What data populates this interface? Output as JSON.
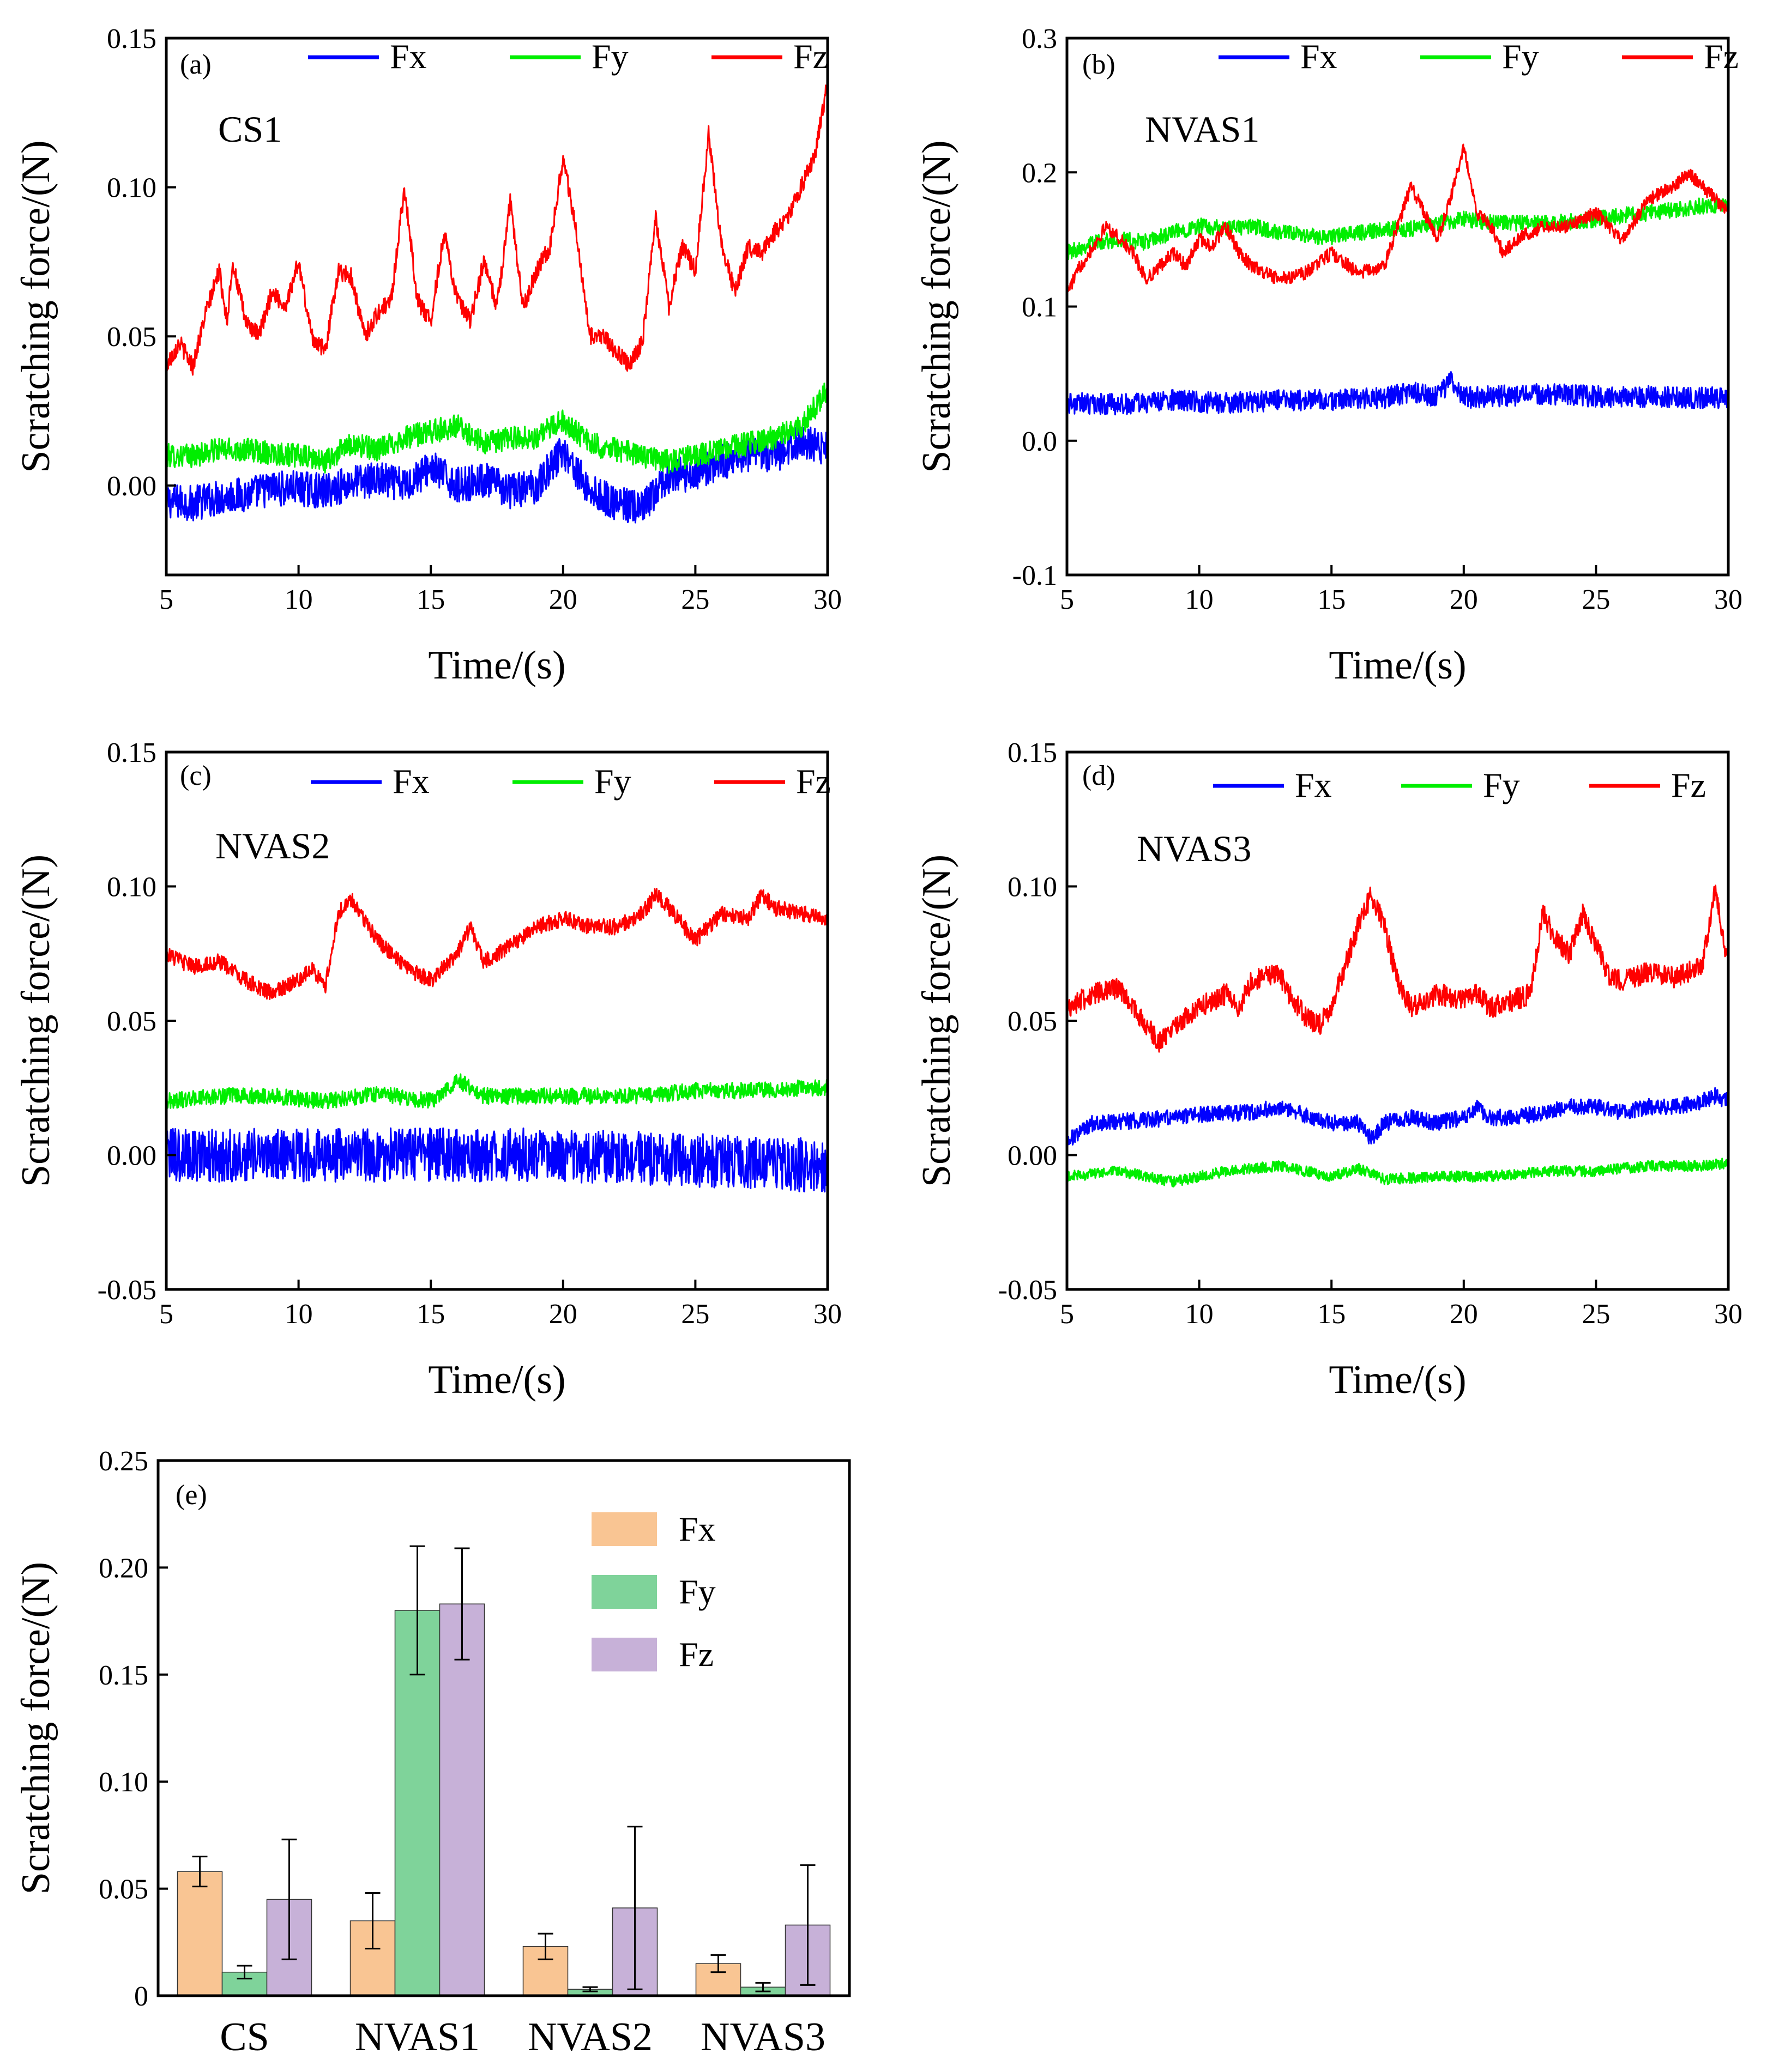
{
  "figure": {
    "ylabel": "Scratching force/(N)",
    "xlabel": "Time/(s)"
  },
  "colors": {
    "Fx": "#0000ff",
    "Fy": "#00ee00",
    "Fz": "#ff0000",
    "bar_Fx": "#f9c593",
    "bar_Fy": "#7fd39a",
    "bar_Fz": "#c7b1d8"
  },
  "chart_data": [
    {
      "type": "line",
      "panel": "(a)",
      "sample": "CS1",
      "xlabel": "Time/(s)",
      "ylabel": "Scratching force/(N)",
      "xlim": [
        5,
        30
      ],
      "ylim": [
        -0.03,
        0.15
      ],
      "xticks": [
        "5",
        "10",
        "15",
        "20",
        "25",
        "30"
      ],
      "yticks": [
        "0.00",
        "0.05",
        "0.10",
        "0.15"
      ],
      "ytick_values": [
        0,
        0.05,
        0.1,
        0.15
      ],
      "legend": [
        "Fx",
        "Fy",
        "Fz"
      ],
      "series": [
        {
          "name": "Fx",
          "x": [
            5,
            6,
            7,
            8,
            9,
            10,
            11,
            12,
            13,
            14,
            15,
            16,
            17,
            18,
            19,
            20,
            21,
            22,
            23,
            24,
            25,
            26,
            27,
            28,
            29,
            30
          ],
          "values": [
            -0.005,
            -0.006,
            -0.004,
            -0.003,
            -0.001,
            -0.001,
            -0.002,
            0.001,
            0.002,
            0.0,
            0.006,
            0.0,
            0.002,
            -0.002,
            0.0,
            0.012,
            -0.002,
            -0.006,
            -0.008,
            0.003,
            0.004,
            0.008,
            0.01,
            0.01,
            0.015,
            0.012
          ],
          "noise": 0.006
        },
        {
          "name": "Fy",
          "x": [
            5,
            6,
            7,
            8,
            9,
            10,
            11,
            12,
            13,
            14,
            15,
            16,
            17,
            18,
            19,
            20,
            21,
            22,
            23,
            24,
            25,
            26,
            27,
            28,
            29,
            30
          ],
          "values": [
            0.01,
            0.01,
            0.012,
            0.012,
            0.011,
            0.01,
            0.008,
            0.014,
            0.012,
            0.016,
            0.018,
            0.02,
            0.014,
            0.016,
            0.016,
            0.022,
            0.014,
            0.012,
            0.01,
            0.008,
            0.01,
            0.012,
            0.014,
            0.016,
            0.02,
            0.032
          ],
          "noise": 0.004
        },
        {
          "name": "Fz",
          "x": [
            5,
            5.5,
            6,
            6.5,
            7,
            7.3,
            7.5,
            8,
            8.5,
            9,
            9.5,
            10,
            10.5,
            11,
            11.5,
            12,
            12.5,
            13,
            13.5,
            14,
            14.5,
            15,
            15.5,
            16,
            16.5,
            17,
            17.5,
            18,
            18.5,
            19,
            19.5,
            20,
            20.5,
            21,
            21.5,
            22,
            22.5,
            23,
            23.5,
            24,
            24.5,
            25,
            25.5,
            26,
            26.5,
            27,
            27.5,
            28,
            28.5,
            29,
            29.5,
            30
          ],
          "values": [
            0.04,
            0.048,
            0.04,
            0.058,
            0.072,
            0.055,
            0.075,
            0.055,
            0.05,
            0.065,
            0.06,
            0.075,
            0.05,
            0.045,
            0.072,
            0.07,
            0.05,
            0.058,
            0.062,
            0.1,
            0.062,
            0.055,
            0.085,
            0.062,
            0.055,
            0.075,
            0.06,
            0.095,
            0.06,
            0.072,
            0.08,
            0.11,
            0.085,
            0.05,
            0.05,
            0.045,
            0.04,
            0.048,
            0.09,
            0.06,
            0.08,
            0.072,
            0.118,
            0.08,
            0.065,
            0.08,
            0.078,
            0.085,
            0.09,
            0.1,
            0.11,
            0.135
          ],
          "noise": 0.003
        }
      ]
    },
    {
      "type": "line",
      "panel": "(b)",
      "sample": "NVAS1",
      "xlabel": "Time/(s)",
      "ylabel": "Scratching force/(N)",
      "xlim": [
        5,
        30
      ],
      "ylim": [
        -0.1,
        0.3
      ],
      "xticks": [
        "5",
        "10",
        "15",
        "20",
        "25",
        "30"
      ],
      "yticks": [
        "-0.1",
        "0.0",
        "0.1",
        "0.2",
        "0.3"
      ],
      "ytick_values": [
        -0.1,
        0,
        0.1,
        0.2,
        0.3
      ],
      "legend": [
        "Fx",
        "Fy",
        "Fz"
      ],
      "series": [
        {
          "name": "Fx",
          "x": [
            5,
            7,
            9,
            11,
            13,
            15,
            17,
            18,
            19,
            19.5,
            20,
            21,
            23,
            25,
            27,
            29,
            30
          ],
          "values": [
            0.028,
            0.027,
            0.03,
            0.028,
            0.03,
            0.03,
            0.032,
            0.036,
            0.033,
            0.045,
            0.032,
            0.033,
            0.035,
            0.033,
            0.033,
            0.032,
            0.032
          ],
          "noise": 0.008
        },
        {
          "name": "Fy",
          "x": [
            5,
            6,
            7,
            8,
            9,
            10,
            11,
            12,
            13,
            14,
            15,
            16,
            17,
            18,
            19,
            20,
            21,
            22,
            23,
            24,
            25,
            26,
            27,
            28,
            29,
            30
          ],
          "values": [
            0.14,
            0.148,
            0.15,
            0.148,
            0.155,
            0.16,
            0.158,
            0.16,
            0.155,
            0.153,
            0.152,
            0.155,
            0.158,
            0.158,
            0.162,
            0.165,
            0.163,
            0.162,
            0.162,
            0.163,
            0.165,
            0.168,
            0.17,
            0.172,
            0.175,
            0.175
          ],
          "noise": 0.006
        },
        {
          "name": "Fz",
          "x": [
            5,
            5.5,
            6,
            6.5,
            7,
            7.5,
            8,
            8.5,
            9,
            9.5,
            10,
            10.5,
            11,
            11.5,
            12,
            13,
            14,
            15,
            16,
            17,
            18,
            18.5,
            19,
            19.5,
            20,
            20.5,
            21,
            21.5,
            22,
            22.5,
            23,
            24,
            25,
            25.5,
            26,
            27,
            28,
            28.5,
            29,
            30
          ],
          "values": [
            0.11,
            0.13,
            0.145,
            0.16,
            0.15,
            0.14,
            0.12,
            0.13,
            0.14,
            0.13,
            0.15,
            0.145,
            0.16,
            0.14,
            0.13,
            0.12,
            0.125,
            0.14,
            0.125,
            0.13,
            0.19,
            0.17,
            0.15,
            0.18,
            0.22,
            0.17,
            0.16,
            0.14,
            0.15,
            0.155,
            0.16,
            0.16,
            0.17,
            0.16,
            0.15,
            0.18,
            0.19,
            0.2,
            0.19,
            0.17
          ],
          "noise": 0.005
        }
      ]
    },
    {
      "type": "line",
      "panel": "(c)",
      "sample": "NVAS2",
      "xlabel": "Time/(s)",
      "ylabel": "Scratching force/(N)",
      "xlim": [
        5,
        30
      ],
      "ylim": [
        -0.05,
        0.15
      ],
      "xticks": [
        "5",
        "10",
        "15",
        "20",
        "25",
        "30"
      ],
      "yticks": [
        "-0.05",
        "0.00",
        "0.05",
        "0.10",
        "0.15"
      ],
      "ytick_values": [
        -0.05,
        0,
        0.05,
        0.1,
        0.15
      ],
      "legend": [
        "Fx",
        "Fy",
        "Fz"
      ],
      "series": [
        {
          "name": "Fx",
          "x": [
            5,
            10,
            15,
            20,
            25,
            30
          ],
          "values": [
            0.0,
            0.0,
            0.0,
            0.0,
            -0.002,
            -0.004
          ],
          "noise": 0.01
        },
        {
          "name": "Fy",
          "x": [
            5,
            7,
            9,
            11,
            13,
            15,
            16,
            17,
            19,
            21,
            23,
            25,
            27,
            29,
            30
          ],
          "values": [
            0.02,
            0.022,
            0.022,
            0.02,
            0.023,
            0.02,
            0.028,
            0.022,
            0.022,
            0.022,
            0.022,
            0.024,
            0.024,
            0.025,
            0.025
          ],
          "noise": 0.003
        },
        {
          "name": "Fz",
          "x": [
            5,
            6,
            7,
            8,
            9,
            10,
            10.5,
            11,
            11.5,
            12,
            13,
            14,
            15,
            16,
            16.5,
            17,
            18,
            19,
            20,
            21,
            22,
            23,
            23.5,
            24,
            25,
            26,
            27,
            27.5,
            28,
            29,
            30
          ],
          "values": [
            0.075,
            0.07,
            0.072,
            0.065,
            0.06,
            0.065,
            0.07,
            0.062,
            0.09,
            0.095,
            0.08,
            0.07,
            0.065,
            0.075,
            0.085,
            0.072,
            0.078,
            0.085,
            0.088,
            0.085,
            0.085,
            0.09,
            0.097,
            0.092,
            0.08,
            0.09,
            0.088,
            0.097,
            0.092,
            0.09,
            0.088
          ],
          "noise": 0.003
        }
      ]
    },
    {
      "type": "line",
      "panel": "(d)",
      "sample": "NVAS3",
      "xlabel": "Time/(s)",
      "ylabel": "Scratching force/(N)",
      "xlim": [
        5,
        30
      ],
      "ylim": [
        -0.05,
        0.15
      ],
      "xticks": [
        "5",
        "10",
        "15",
        "20",
        "25",
        "30"
      ],
      "yticks": [
        "-0.05",
        "0.00",
        "0.05",
        "0.10",
        "0.15"
      ],
      "ytick_values": [
        -0.05,
        0,
        0.05,
        0.1,
        0.15
      ],
      "legend": [
        "Fx",
        "Fy",
        "Fz"
      ],
      "series": [
        {
          "name": "Fx",
          "x": [
            5,
            6,
            8,
            10,
            12,
            13,
            14,
            15,
            16,
            16.5,
            17,
            18,
            19,
            20,
            20.5,
            21,
            22,
            23,
            24,
            25,
            26,
            27,
            28,
            29,
            29.5,
            30
          ],
          "values": [
            0.005,
            0.012,
            0.013,
            0.015,
            0.016,
            0.018,
            0.015,
            0.012,
            0.012,
            0.006,
            0.012,
            0.014,
            0.012,
            0.014,
            0.018,
            0.014,
            0.014,
            0.016,
            0.018,
            0.018,
            0.016,
            0.018,
            0.018,
            0.02,
            0.022,
            0.02
          ],
          "noise": 0.003
        },
        {
          "name": "Fy",
          "x": [
            5,
            7,
            9,
            11,
            13,
            15,
            16,
            17,
            19,
            21,
            23,
            25,
            27,
            29,
            30
          ],
          "values": [
            -0.008,
            -0.006,
            -0.01,
            -0.006,
            -0.004,
            -0.008,
            -0.005,
            -0.009,
            -0.008,
            -0.008,
            -0.006,
            -0.006,
            -0.004,
            -0.004,
            -0.003
          ],
          "noise": 0.002
        },
        {
          "name": "Fz",
          "x": [
            5,
            6,
            7,
            7.5,
            8,
            8.5,
            9,
            10,
            11,
            11.5,
            12,
            13,
            13.5,
            14,
            14.5,
            15,
            15.5,
            16,
            16.5,
            17,
            17.5,
            18,
            19,
            20,
            20.5,
            21,
            22,
            22.5,
            23,
            23.5,
            24,
            24.5,
            25,
            25.5,
            26,
            27,
            28,
            29,
            29.5,
            30
          ],
          "values": [
            0.055,
            0.06,
            0.062,
            0.055,
            0.048,
            0.042,
            0.048,
            0.055,
            0.06,
            0.055,
            0.065,
            0.068,
            0.058,
            0.052,
            0.048,
            0.055,
            0.07,
            0.085,
            0.097,
            0.085,
            0.065,
            0.055,
            0.06,
            0.058,
            0.06,
            0.055,
            0.058,
            0.06,
            0.09,
            0.08,
            0.075,
            0.09,
            0.078,
            0.066,
            0.065,
            0.068,
            0.066,
            0.07,
            0.098,
            0.07
          ],
          "noise": 0.004
        }
      ]
    },
    {
      "type": "bar",
      "panel": "(e)",
      "ylabel": "Scratching force/(N)",
      "ylim": [
        0,
        0.25
      ],
      "yticks": [
        "0",
        "0.05",
        "0.10",
        "0.15",
        "0.20",
        "0.25"
      ],
      "ytick_values": [
        0,
        0.05,
        0.1,
        0.15,
        0.2,
        0.25
      ],
      "categories": [
        "CS",
        "NVAS1",
        "NVAS2",
        "NVAS3"
      ],
      "legend": [
        "Fx",
        "Fy",
        "Fz"
      ],
      "series": [
        {
          "name": "Fx",
          "values": [
            0.058,
            0.035,
            0.023,
            0.015
          ],
          "errors": [
            0.007,
            0.013,
            0.006,
            0.004
          ]
        },
        {
          "name": "Fy",
          "values": [
            0.011,
            0.18,
            0.003,
            0.004
          ],
          "errors": [
            0.003,
            0.03,
            0.001,
            0.002
          ]
        },
        {
          "name": "Fz",
          "values": [
            0.045,
            0.183,
            0.041,
            0.033
          ],
          "errors": [
            0.028,
            0.026,
            0.038,
            0.028
          ]
        }
      ]
    }
  ]
}
